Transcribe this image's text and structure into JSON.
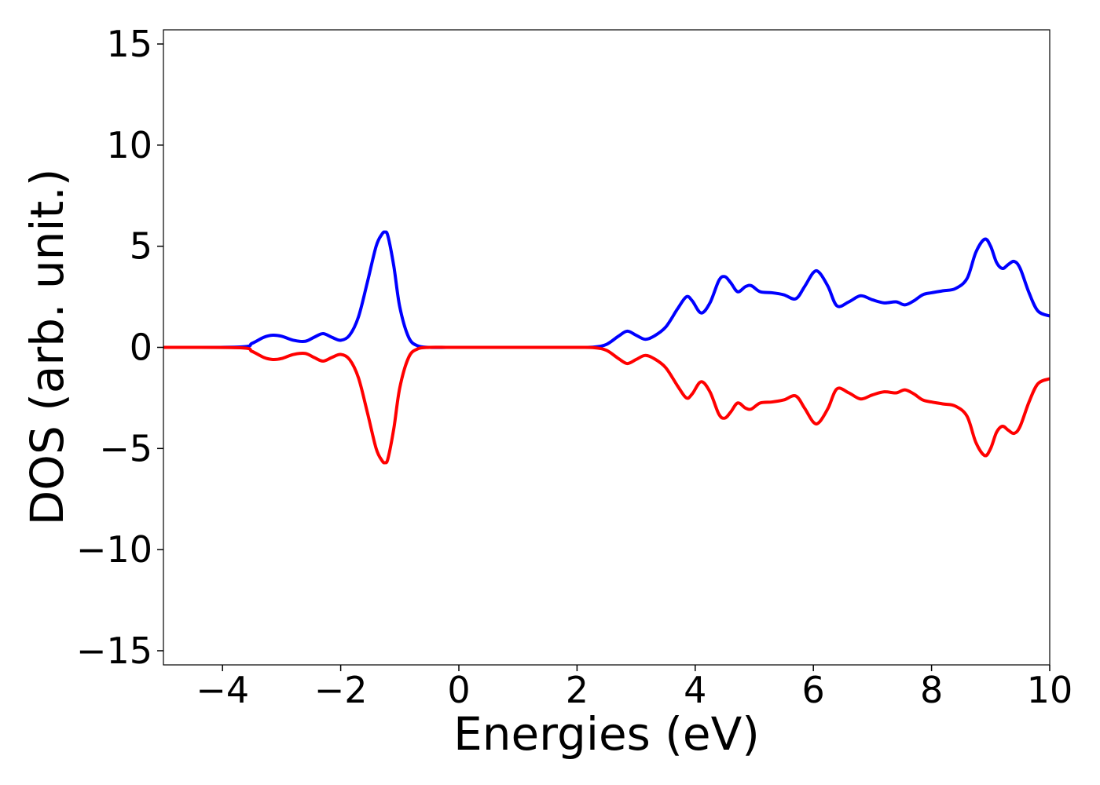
{
  "chart_data": {
    "type": "line",
    "title": "",
    "xlabel": "Energies (eV)",
    "ylabel": "DOS (arb. unit.)",
    "xlim": [
      -5,
      10
    ],
    "ylim": [
      -15.7,
      15.7
    ],
    "xticks": [
      -4,
      -2,
      0,
      2,
      4,
      6,
      8,
      10
    ],
    "xtick_labels": [
      "−4",
      "−2",
      "0",
      "2",
      "4",
      "6",
      "8",
      "10"
    ],
    "yticks": [
      -15,
      -10,
      -5,
      0,
      5,
      10,
      15
    ],
    "ytick_labels": [
      "−15",
      "−10",
      "−5",
      "0",
      "5",
      "10",
      "15"
    ],
    "grid": false,
    "legend": "none",
    "series": [
      {
        "color": "#0000ff",
        "x": [
          -5.0,
          -3.7,
          -3.5,
          -3.3,
          -3.15,
          -3.0,
          -2.8,
          -2.6,
          -2.45,
          -2.3,
          -2.15,
          -2.0,
          -1.85,
          -1.7,
          -1.55,
          -1.4,
          -1.3,
          -1.25,
          -1.2,
          -1.1,
          -1.0,
          -0.85,
          -0.7,
          -0.5,
          -0.2,
          0.0,
          1.0,
          2.0,
          2.3,
          2.5,
          2.7,
          2.85,
          3.0,
          3.15,
          3.3,
          3.5,
          3.7,
          3.85,
          3.95,
          4.1,
          4.25,
          4.4,
          4.5,
          4.6,
          4.72,
          4.85,
          4.95,
          5.1,
          5.3,
          5.5,
          5.7,
          5.85,
          6.0,
          6.1,
          6.25,
          6.4,
          6.6,
          6.8,
          7.0,
          7.2,
          7.4,
          7.55,
          7.7,
          7.85,
          8.0,
          8.2,
          8.4,
          8.6,
          8.75,
          8.9,
          9.0,
          9.1,
          9.2,
          9.3,
          9.4,
          9.5,
          9.65,
          9.8,
          10.0
        ],
        "y": [
          0.0,
          0.02,
          0.2,
          0.5,
          0.6,
          0.55,
          0.35,
          0.3,
          0.5,
          0.68,
          0.5,
          0.35,
          0.6,
          1.5,
          3.2,
          5.0,
          5.6,
          5.7,
          5.5,
          4.0,
          2.0,
          0.5,
          0.08,
          0.0,
          0.0,
          0.0,
          0.0,
          0.0,
          0.02,
          0.15,
          0.55,
          0.8,
          0.6,
          0.4,
          0.55,
          1.0,
          1.9,
          2.5,
          2.3,
          1.7,
          2.2,
          3.3,
          3.5,
          3.2,
          2.75,
          3.0,
          3.05,
          2.75,
          2.7,
          2.6,
          2.4,
          3.0,
          3.7,
          3.7,
          3.0,
          2.05,
          2.25,
          2.55,
          2.35,
          2.2,
          2.25,
          2.1,
          2.3,
          2.6,
          2.7,
          2.8,
          2.9,
          3.4,
          4.7,
          5.35,
          5.0,
          4.2,
          3.9,
          4.1,
          4.25,
          3.9,
          2.7,
          1.8,
          1.55
        ]
      },
      {
        "color": "#ff0000",
        "x": [
          -5.0,
          -3.7,
          -3.5,
          -3.3,
          -3.15,
          -3.0,
          -2.8,
          -2.6,
          -2.45,
          -2.3,
          -2.15,
          -2.0,
          -1.85,
          -1.7,
          -1.55,
          -1.4,
          -1.3,
          -1.25,
          -1.2,
          -1.1,
          -1.0,
          -0.85,
          -0.7,
          -0.5,
          -0.2,
          0.0,
          1.0,
          2.0,
          2.3,
          2.5,
          2.7,
          2.85,
          3.0,
          3.15,
          3.3,
          3.5,
          3.7,
          3.85,
          3.95,
          4.1,
          4.25,
          4.4,
          4.5,
          4.6,
          4.72,
          4.85,
          4.95,
          5.1,
          5.3,
          5.5,
          5.7,
          5.85,
          6.0,
          6.1,
          6.25,
          6.4,
          6.6,
          6.8,
          7.0,
          7.2,
          7.4,
          7.55,
          7.7,
          7.85,
          8.0,
          8.2,
          8.4,
          8.6,
          8.75,
          8.9,
          9.0,
          9.1,
          9.2,
          9.3,
          9.4,
          9.5,
          9.65,
          9.8,
          10.0
        ],
        "y": [
          0.0,
          -0.02,
          -0.2,
          -0.5,
          -0.6,
          -0.55,
          -0.35,
          -0.3,
          -0.5,
          -0.68,
          -0.5,
          -0.35,
          -0.6,
          -1.5,
          -3.2,
          -5.0,
          -5.6,
          -5.7,
          -5.5,
          -4.0,
          -2.0,
          -0.5,
          -0.08,
          0.0,
          0.0,
          0.0,
          0.0,
          0.0,
          -0.02,
          -0.15,
          -0.55,
          -0.8,
          -0.6,
          -0.4,
          -0.55,
          -1.0,
          -1.9,
          -2.5,
          -2.3,
          -1.7,
          -2.2,
          -3.3,
          -3.5,
          -3.2,
          -2.75,
          -3.0,
          -3.05,
          -2.75,
          -2.7,
          -2.6,
          -2.4,
          -3.0,
          -3.7,
          -3.7,
          -3.0,
          -2.05,
          -2.25,
          -2.55,
          -2.35,
          -2.2,
          -2.25,
          -2.1,
          -2.3,
          -2.6,
          -2.7,
          -2.8,
          -2.9,
          -3.4,
          -4.7,
          -5.35,
          -5.0,
          -4.2,
          -3.9,
          -4.1,
          -4.25,
          -3.9,
          -2.7,
          -1.8,
          -1.55
        ]
      }
    ]
  }
}
